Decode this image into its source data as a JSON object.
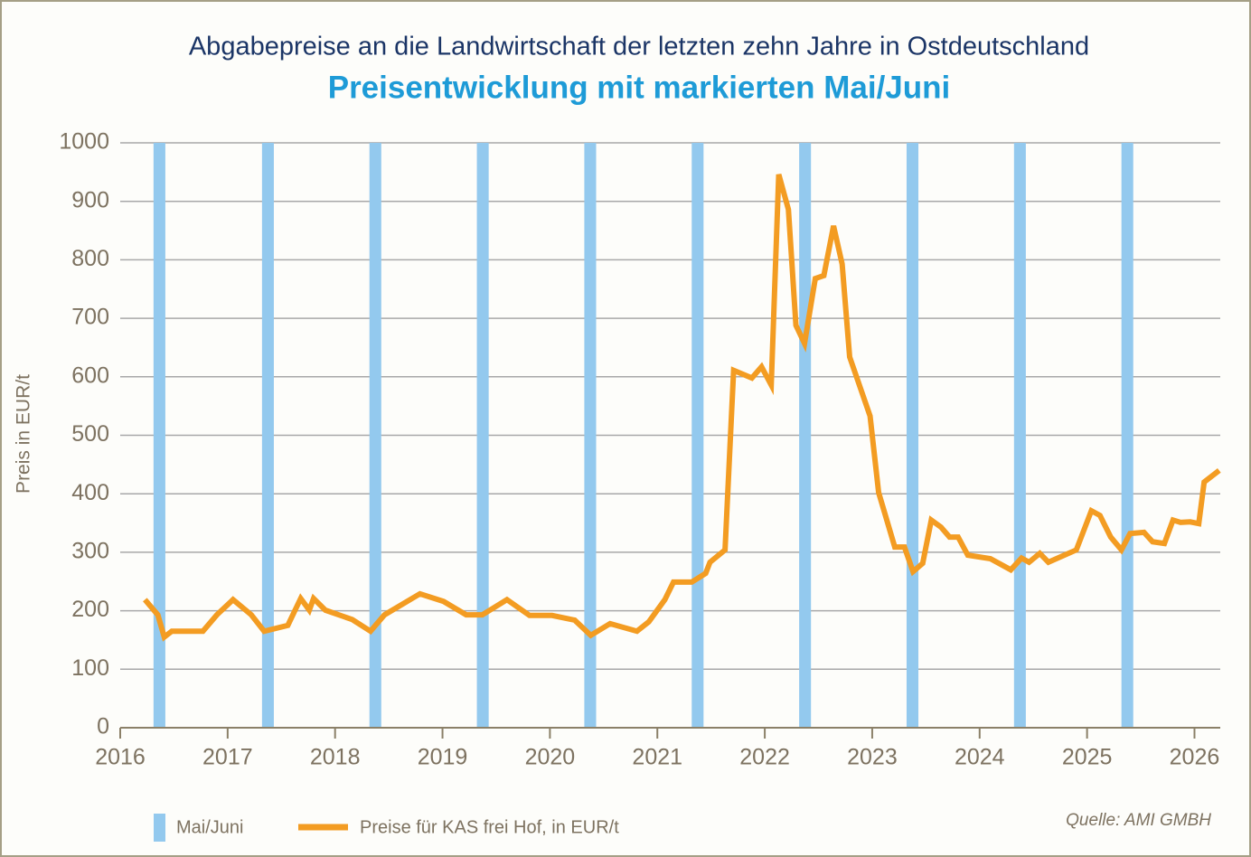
{
  "chart_data": {
    "type": "line",
    "title": "Abgabepreise an die Landwirtschaft der letzten zehn Jahre in Ostdeutschland",
    "subtitle": "Preisentwicklung mit markierten Mai/Juni",
    "y_label": "Preis in EUR/t",
    "source": "Quelle: AMI GMBH",
    "xlim": [
      2016,
      2026.24
    ],
    "xticks": [
      2016,
      2017,
      2018,
      2019,
      2020,
      2021,
      2022,
      2023,
      2024,
      2025,
      2026
    ],
    "ylim": [
      0,
      1000
    ],
    "yticks": [
      0,
      100,
      200,
      300,
      400,
      500,
      600,
      700,
      800,
      900,
      1000
    ],
    "grid": true,
    "highlights": {
      "name": "Mai/Juni",
      "color": "#93c9ee",
      "ranges": [
        [
          2016.31,
          2016.42
        ],
        [
          2017.32,
          2017.43
        ],
        [
          2018.32,
          2018.43
        ],
        [
          2019.32,
          2019.43
        ],
        [
          2020.32,
          2020.43
        ],
        [
          2021.32,
          2021.43
        ],
        [
          2022.32,
          2022.43
        ],
        [
          2023.32,
          2023.43
        ],
        [
          2024.32,
          2024.43
        ],
        [
          2025.32,
          2025.43
        ]
      ]
    },
    "series": [
      {
        "name": "Preise für KAS frei Hof, in EUR/t",
        "color": "#f39c22",
        "x": [
          2016.23,
          2016.35,
          2016.41,
          2016.48,
          2016.77,
          2016.9,
          2017.05,
          2017.22,
          2017.34,
          2017.56,
          2017.68,
          2017.76,
          2017.8,
          2017.91,
          2018.16,
          2018.33,
          2018.46,
          2018.79,
          2019.01,
          2019.22,
          2019.37,
          2019.6,
          2019.81,
          2020.02,
          2020.23,
          2020.38,
          2020.56,
          2020.81,
          2020.92,
          2021.07,
          2021.15,
          2021.32,
          2021.45,
          2021.49,
          2021.63,
          2021.71,
          2021.88,
          2021.97,
          2022.06,
          2022.13,
          2022.22,
          2022.29,
          2022.37,
          2022.47,
          2022.55,
          2022.64,
          2022.72,
          2022.79,
          2022.98,
          2023.06,
          2023.21,
          2023.3,
          2023.38,
          2023.47,
          2023.55,
          2023.64,
          2023.72,
          2023.8,
          2023.89,
          2024.1,
          2024.29,
          2024.39,
          2024.46,
          2024.56,
          2024.64,
          2024.9,
          2025.04,
          2025.12,
          2025.22,
          2025.32,
          2025.4,
          2025.53,
          2025.61,
          2025.72,
          2025.8,
          2025.87,
          2025.96,
          2026.04,
          2026.09,
          2026.23
        ],
        "values": [
          219,
          193,
          155,
          165,
          165,
          193,
          219,
          193,
          165,
          175,
          221,
          201,
          221,
          201,
          185,
          165,
          193,
          229,
          216,
          193,
          193,
          219,
          192,
          192,
          184,
          158,
          178,
          165,
          181,
          219,
          249,
          249,
          264,
          283,
          304,
          611,
          598,
          617,
          586,
          946,
          886,
          688,
          657,
          768,
          773,
          858,
          793,
          634,
          533,
          402,
          309,
          309,
          267,
          281,
          355,
          343,
          326,
          326,
          295,
          289,
          270,
          290,
          283,
          298,
          283,
          304,
          371,
          363,
          326,
          304,
          332,
          334,
          318,
          315,
          355,
          351,
          352,
          349,
          420,
          440
        ]
      }
    ]
  }
}
